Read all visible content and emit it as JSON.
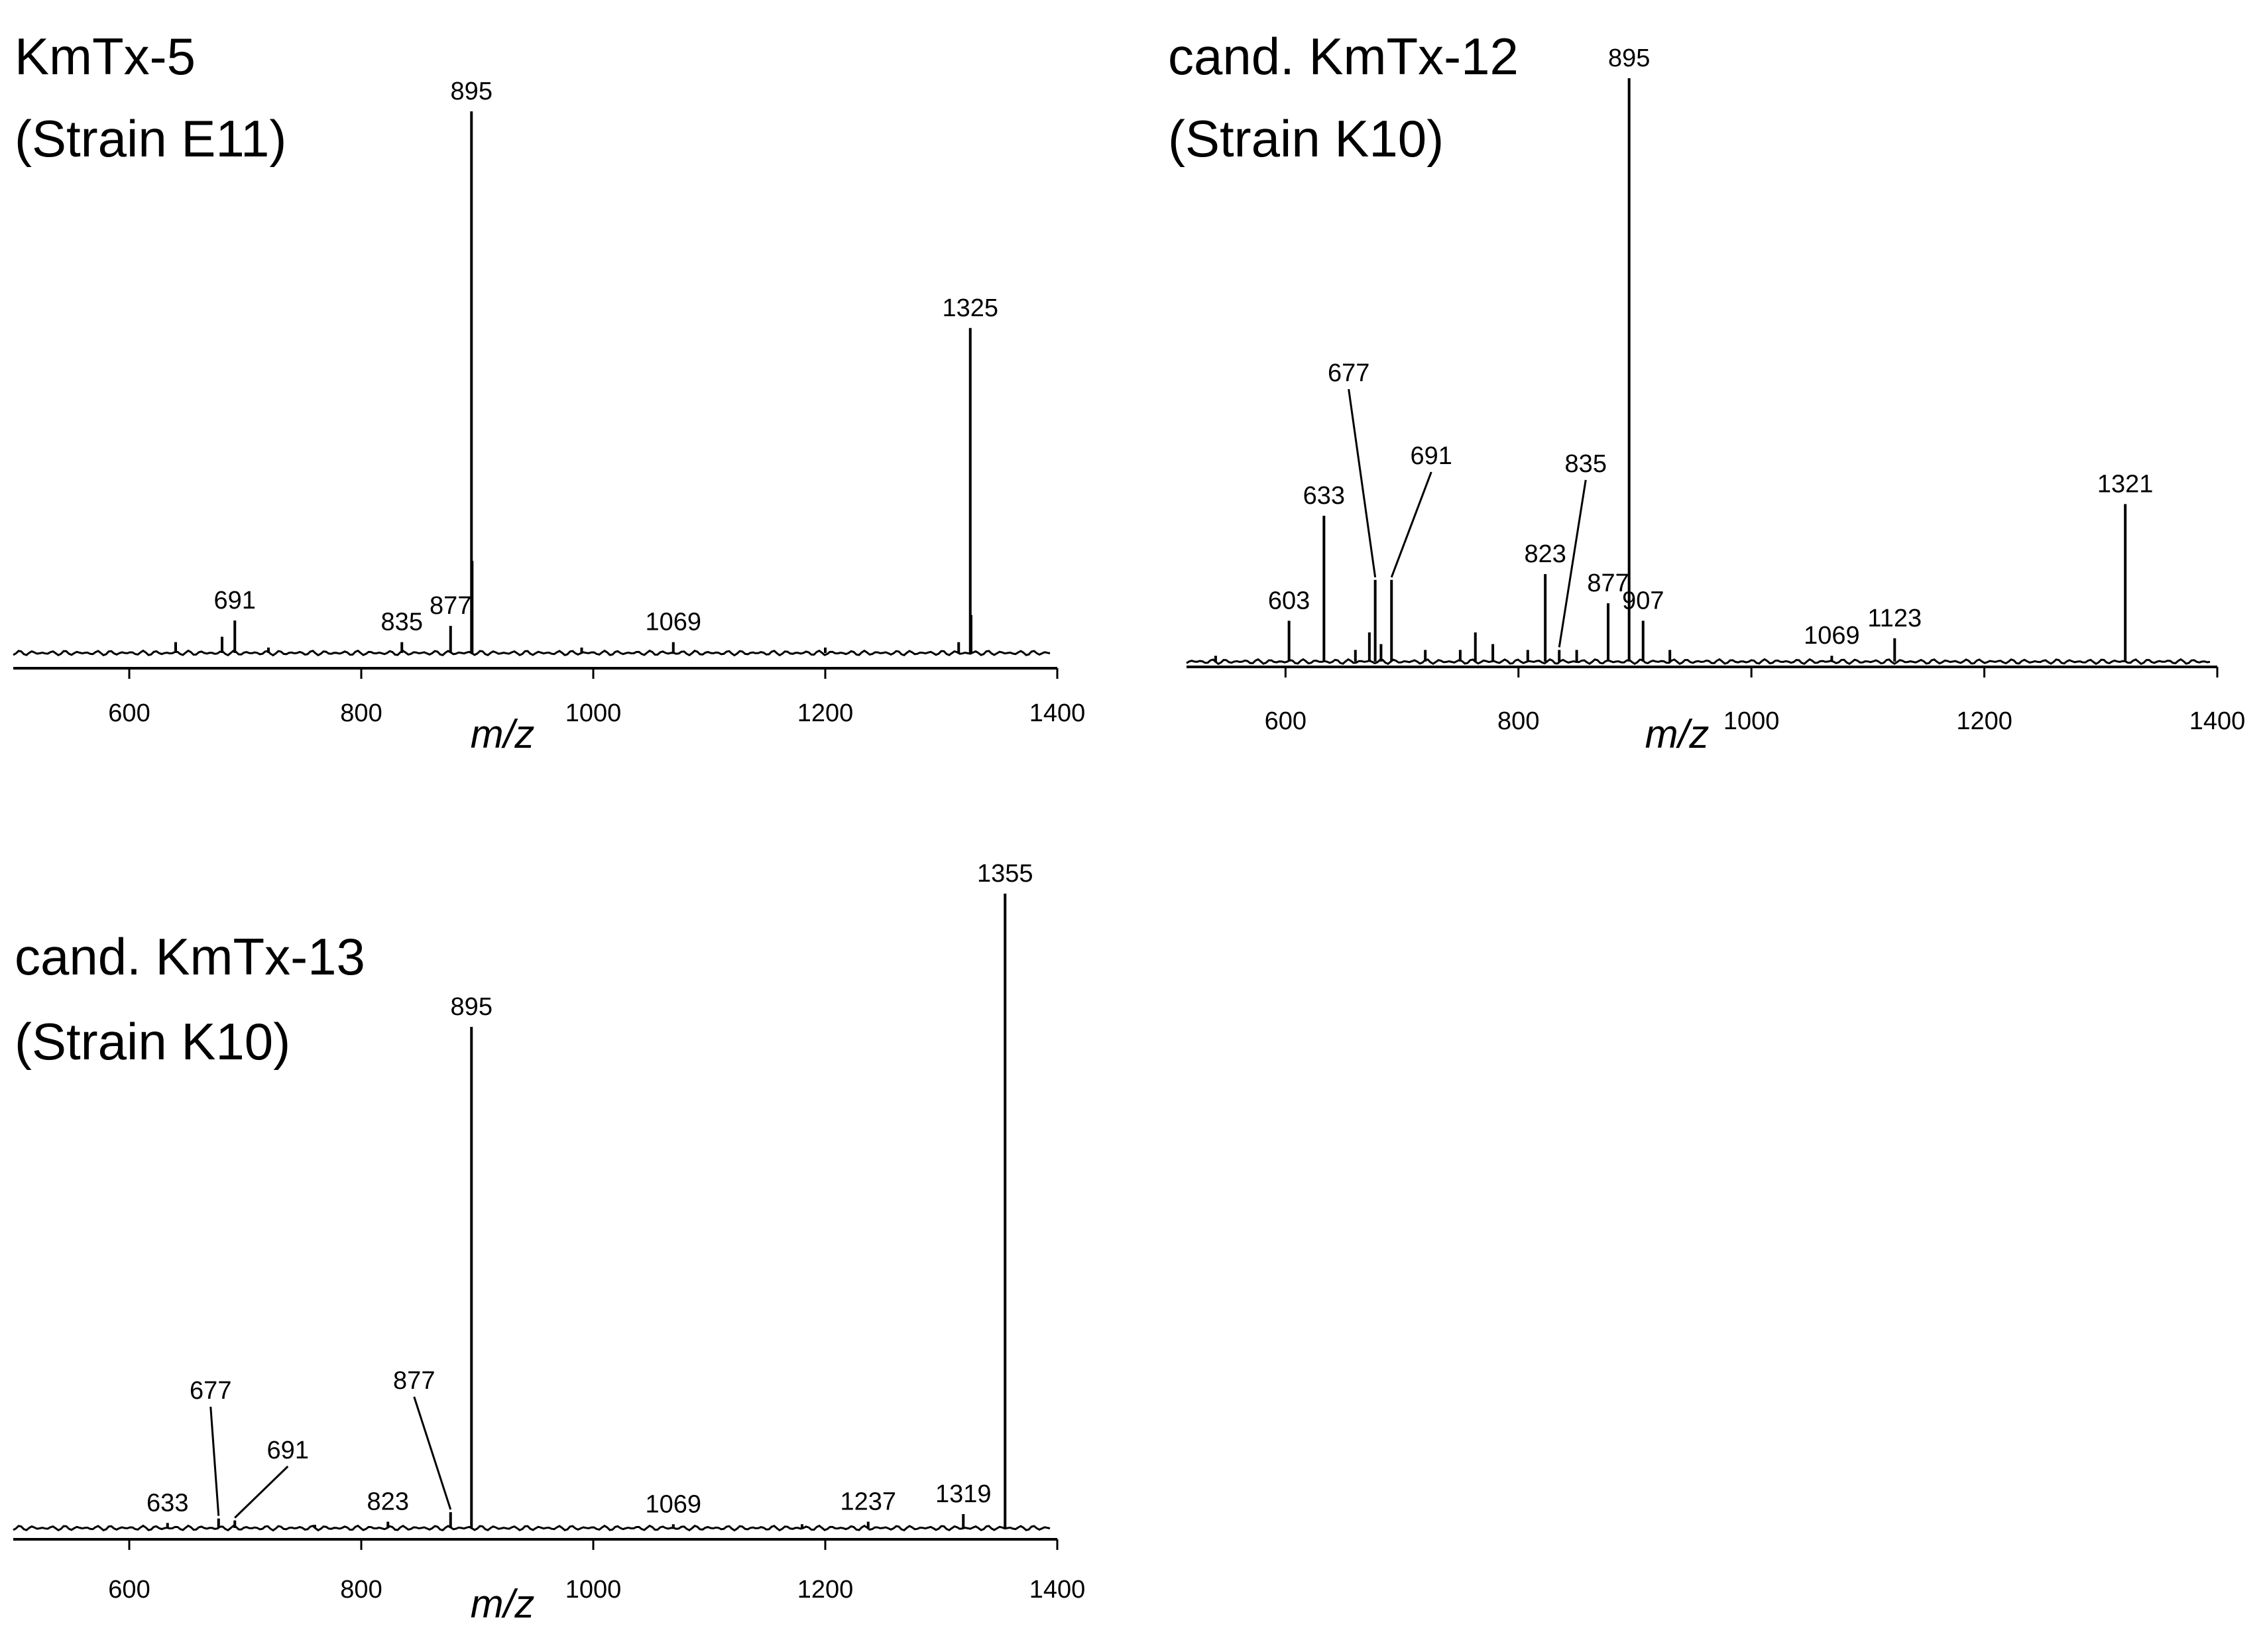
{
  "chart_data": [
    {
      "type": "line",
      "title_lines": [
        "KmTx-5",
        "(Strain E11)"
      ],
      "xlabel": "m/z",
      "ylabel": "",
      "xlim": [
        500,
        1400
      ],
      "ylim": [
        0,
        100
      ],
      "xticks": [
        600,
        800,
        1000,
        1200,
        1400
      ],
      "peaks": [
        {
          "x": 640,
          "y": 2
        },
        {
          "x": 680,
          "y": 3
        },
        {
          "x": 691,
          "y": 6,
          "label": "691"
        },
        {
          "x": 720,
          "y": 1
        },
        {
          "x": 835,
          "y": 2,
          "label": "835"
        },
        {
          "x": 877,
          "y": 5,
          "label": "877"
        },
        {
          "x": 895,
          "y": 100,
          "label": "895"
        },
        {
          "x": 895.6,
          "y": 17
        },
        {
          "x": 990,
          "y": 1
        },
        {
          "x": 1069,
          "y": 2,
          "label": "1069"
        },
        {
          "x": 1200,
          "y": 1
        },
        {
          "x": 1315,
          "y": 2
        },
        {
          "x": 1325,
          "y": 60,
          "label": "1325"
        },
        {
          "x": 1325.7,
          "y": 7
        }
      ]
    },
    {
      "type": "line",
      "title_lines": [
        "cand. KmTx-12",
        "(Strain K10)"
      ],
      "xlabel": "m/z",
      "ylabel": "",
      "xlim": [
        515,
        1400
      ],
      "ylim": [
        0,
        100
      ],
      "xticks": [
        600,
        800,
        1000,
        1200,
        1400
      ],
      "peaks": [
        {
          "x": 540,
          "y": 1
        },
        {
          "x": 603,
          "y": 7,
          "label": "603"
        },
        {
          "x": 633,
          "y": 25,
          "label": "633"
        },
        {
          "x": 660,
          "y": 2
        },
        {
          "x": 672,
          "y": 5
        },
        {
          "x": 677,
          "y": 14,
          "label": "677"
        },
        {
          "x": 682,
          "y": 3
        },
        {
          "x": 691,
          "y": 14,
          "label": "691"
        },
        {
          "x": 720,
          "y": 2
        },
        {
          "x": 750,
          "y": 2
        },
        {
          "x": 763,
          "y": 5
        },
        {
          "x": 778,
          "y": 3
        },
        {
          "x": 808,
          "y": 2
        },
        {
          "x": 823,
          "y": 15,
          "label": "823"
        },
        {
          "x": 835,
          "y": 2,
          "label": "835"
        },
        {
          "x": 850,
          "y": 2
        },
        {
          "x": 877,
          "y": 10,
          "label": "877"
        },
        {
          "x": 895,
          "y": 100,
          "label": "895"
        },
        {
          "x": 907,
          "y": 7,
          "label": "907"
        },
        {
          "x": 930,
          "y": 2
        },
        {
          "x": 1069,
          "y": 1,
          "label": "1069"
        },
        {
          "x": 1123,
          "y": 4,
          "label": "1123"
        },
        {
          "x": 1321,
          "y": 27,
          "label": "1321"
        }
      ]
    },
    {
      "type": "line",
      "title_lines": [
        "cand. KmTx-13",
        "(Strain K10)"
      ],
      "xlabel": "m/z",
      "ylabel": "",
      "xlim": [
        500,
        1400
      ],
      "ylim": [
        0,
        100
      ],
      "xticks": [
        600,
        800,
        1000,
        1200,
        1400
      ],
      "peaks": [
        {
          "x": 633,
          "y": 0.8,
          "label": "633"
        },
        {
          "x": 677,
          "y": 1.5,
          "label": "677"
        },
        {
          "x": 691,
          "y": 1.2,
          "label": "691"
        },
        {
          "x": 760,
          "y": 0.5
        },
        {
          "x": 823,
          "y": 1,
          "label": "823"
        },
        {
          "x": 877,
          "y": 2.5,
          "label": "877"
        },
        {
          "x": 895,
          "y": 79,
          "label": "895"
        },
        {
          "x": 1069,
          "y": 0.6,
          "label": "1069"
        },
        {
          "x": 1180,
          "y": 0.6
        },
        {
          "x": 1237,
          "y": 1,
          "label": "1237"
        },
        {
          "x": 1319,
          "y": 2.2,
          "label": "1319"
        },
        {
          "x": 1355,
          "y": 100,
          "label": "1355"
        }
      ]
    }
  ]
}
